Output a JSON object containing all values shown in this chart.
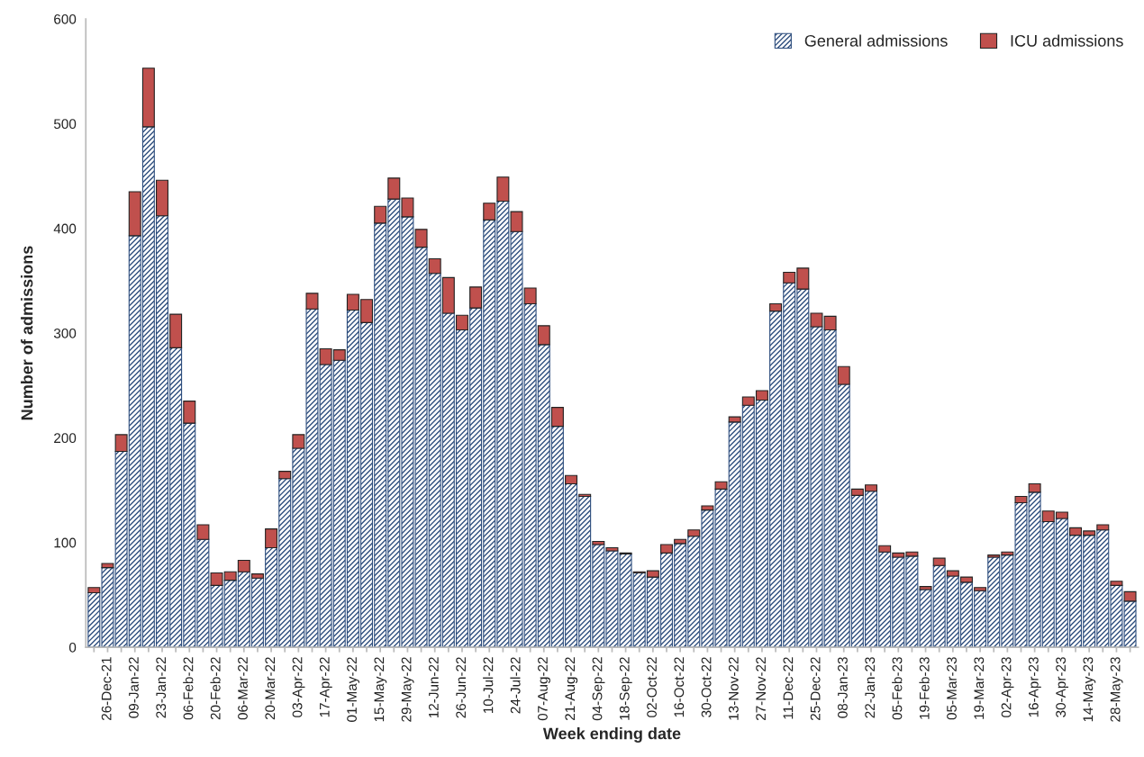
{
  "chart_data": {
    "type": "bar",
    "stacked": true,
    "xlabel": "Week ending date",
    "ylabel": "Number of admissions",
    "categories": [
      null,
      "26-Dec-21",
      null,
      "09-Jan-22",
      null,
      "23-Jan-22",
      null,
      "06-Feb-22",
      null,
      "20-Feb-22",
      null,
      "06-Mar-22",
      null,
      "20-Mar-22",
      null,
      "03-Apr-22",
      null,
      "17-Apr-22",
      null,
      "01-May-22",
      null,
      "15-May-22",
      null,
      "29-May-22",
      null,
      "12-Jun-22",
      null,
      "26-Jun-22",
      null,
      "10-Jul-22",
      null,
      "24-Jul-22",
      null,
      "07-Aug-22",
      null,
      "21-Aug-22",
      null,
      "04-Sep-22",
      null,
      "18-Sep-22",
      null,
      "02-Oct-22",
      null,
      "16-Oct-22",
      null,
      "30-Oct-22",
      null,
      "13-Nov-22",
      null,
      "27-Nov-22",
      null,
      "11-Dec-22",
      null,
      "25-Dec-22",
      null,
      "08-Jan-23",
      null,
      "22-Jan-23",
      null,
      "05-Feb-23",
      null,
      "19-Feb-23",
      null,
      "05-Mar-23",
      null,
      "19-Mar-23",
      null,
      "02-Apr-23",
      null,
      "16-Apr-23",
      null,
      "30-Apr-23",
      null,
      "14-May-23",
      null,
      "28-May-23",
      null
    ],
    "series": [
      {
        "name": "General admissions",
        "color": "#2e4e7e",
        "values": [
          52,
          76,
          187,
          393,
          497,
          412,
          286,
          214,
          103,
          59,
          64,
          72,
          66,
          95,
          161,
          190,
          323,
          270,
          274,
          322,
          310,
          405,
          428,
          411,
          382,
          357,
          319,
          303,
          324,
          408,
          426,
          397,
          328,
          289,
          211,
          156,
          144,
          98,
          92,
          89,
          71,
          67,
          90,
          99,
          106,
          131,
          151,
          215,
          231,
          236,
          321,
          348,
          342,
          306,
          303,
          251,
          145,
          149,
          91,
          86,
          87,
          55,
          78,
          68,
          62,
          54,
          86,
          88,
          138,
          148,
          120,
          123,
          107,
          107,
          112,
          59,
          44
        ]
      },
      {
        "name": "ICU admissions",
        "color": "#c0504d",
        "values": [
          5,
          4,
          16,
          42,
          56,
          34,
          32,
          21,
          14,
          12,
          8,
          11,
          4,
          18,
          7,
          13,
          15,
          15,
          10,
          15,
          22,
          16,
          20,
          18,
          17,
          14,
          34,
          14,
          20,
          16,
          23,
          19,
          15,
          18,
          18,
          8,
          2,
          3,
          3,
          1,
          1,
          6,
          8,
          4,
          6,
          4,
          7,
          5,
          8,
          9,
          7,
          10,
          20,
          13,
          13,
          17,
          6,
          6,
          6,
          4,
          4,
          3,
          7,
          5,
          5,
          3,
          2,
          3,
          6,
          8,
          10,
          6,
          7,
          4,
          5,
          4,
          9
        ]
      }
    ],
    "ylim": [
      0,
      600
    ],
    "yticks": [
      0,
      100,
      200,
      300,
      400,
      500,
      600
    ],
    "grid": false,
    "legend": "top right"
  }
}
